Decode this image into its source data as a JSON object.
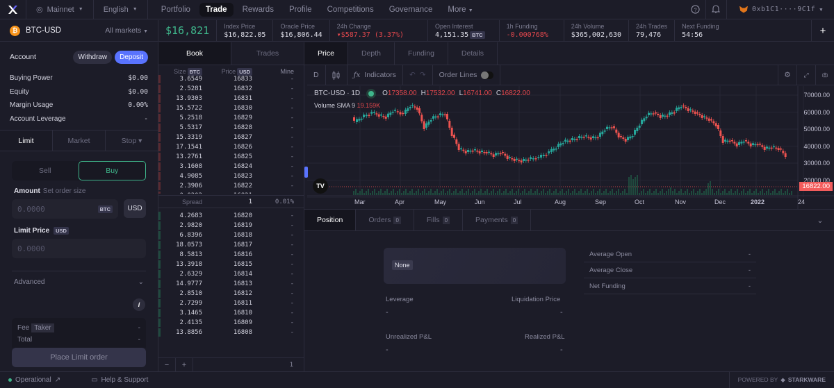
{
  "nav": {
    "network": "Mainnet",
    "language": "English",
    "links": [
      "Portfolio",
      "Trade",
      "Rewards",
      "Profile",
      "Competitions",
      "Governance",
      "More"
    ],
    "active": "Trade",
    "wallet": "0xb1C1····9C1f"
  },
  "market": {
    "symbol": "BTC-USD",
    "all_markets": "All markets",
    "price": "$16,821",
    "stats": [
      {
        "label": "Index Price",
        "value": "$16,822.05"
      },
      {
        "label": "Oracle Price",
        "value": "$16,806.44"
      },
      {
        "label": "24h Change",
        "value": "▾$587.37 (3.37%)",
        "color": "red"
      },
      {
        "label": "Open Interest",
        "value": "4,151.35",
        "tag": "BTC"
      },
      {
        "label": "1h Funding",
        "value": "-0.000768%",
        "color": "red"
      },
      {
        "label": "24h Volume",
        "value": "$365,002,630"
      },
      {
        "label": "24h Trades",
        "value": "79,476"
      },
      {
        "label": "Next Funding",
        "value": "54:56"
      }
    ]
  },
  "account": {
    "title": "Account",
    "withdraw": "Withdraw",
    "deposit": "Deposit",
    "rows": [
      {
        "label": "Buying Power",
        "value": "$0.00"
      },
      {
        "label": "Equity",
        "value": "$0.00"
      },
      {
        "label": "Margin Usage",
        "value": "0.00%"
      },
      {
        "label": "Account Leverage",
        "value": "-"
      }
    ]
  },
  "order": {
    "tabs": [
      "Limit",
      "Market",
      "Stop ▾"
    ],
    "sell": "Sell",
    "buy": "Buy",
    "amount_label": "Amount",
    "amount_sub": "Set order size",
    "amount_placeholder": "0.0000",
    "amount_unit": "BTC",
    "usd_toggle": "USD",
    "limit_label": "Limit Price",
    "limit_unit": "USD",
    "limit_placeholder": "0.0000",
    "advanced": "Advanced",
    "fee_label": "Fee",
    "fee_type": "Taker",
    "fee_value": "-",
    "total_label": "Total",
    "total_value": "-",
    "submit": "Place Limit order"
  },
  "book": {
    "tabs": [
      "Book",
      "Trades"
    ],
    "headers": {
      "size": "Size",
      "size_unit": "BTC",
      "price": "Price",
      "price_unit": "USD",
      "mine": "Mine"
    },
    "asks": [
      [
        "3.6549",
        "16833",
        "-"
      ],
      [
        "2.5281",
        "16832",
        "-"
      ],
      [
        "13.9303",
        "16831",
        "-"
      ],
      [
        "15.5722",
        "16830",
        "-"
      ],
      [
        "5.2518",
        "16829",
        "-"
      ],
      [
        "5.5317",
        "16828",
        "-"
      ],
      [
        "15.3319",
        "16827",
        "-"
      ],
      [
        "17.1541",
        "16826",
        "-"
      ],
      [
        "13.2761",
        "16825",
        "-"
      ],
      [
        "3.1608",
        "16824",
        "-"
      ],
      [
        "4.9085",
        "16823",
        "-"
      ],
      [
        "2.3906",
        "16822",
        "-"
      ],
      [
        "0.0202",
        "16821",
        "-"
      ]
    ],
    "spread": {
      "label": "Spread",
      "value": "1",
      "pct": "0.01%"
    },
    "bids": [
      [
        "4.2683",
        "16820",
        "-"
      ],
      [
        "2.9820",
        "16819",
        "-"
      ],
      [
        "6.8396",
        "16818",
        "-"
      ],
      [
        "18.0573",
        "16817",
        "-"
      ],
      [
        "8.5813",
        "16816",
        "-"
      ],
      [
        "13.3918",
        "16815",
        "-"
      ],
      [
        "2.6329",
        "16814",
        "-"
      ],
      [
        "14.9777",
        "16813",
        "-"
      ],
      [
        "2.8510",
        "16812",
        "-"
      ],
      [
        "2.7299",
        "16811",
        "-"
      ],
      [
        "3.1465",
        "16810",
        "-"
      ],
      [
        "2.4135",
        "16809",
        "-"
      ],
      [
        "13.8856",
        "16808",
        "-"
      ]
    ],
    "grouping": "1"
  },
  "chart": {
    "tabs": [
      "Price",
      "Depth",
      "Funding",
      "Details"
    ],
    "toolbar": {
      "interval": "D",
      "indicators": "Indicators",
      "order_lines": "Order Lines"
    },
    "title": "BTC-USD · 1D",
    "ohlc": {
      "o": "17358.00",
      "h": "17532.00",
      "l": "16741.00",
      "c": "16822.00"
    },
    "volume_label": "Volume SMA 9",
    "volume_value": "19.159K",
    "y_ticks": [
      "70000.00",
      "60000.00",
      "50000.00",
      "40000.00",
      "30000.00",
      "20000.00"
    ],
    "x_ticks": [
      "Mar",
      "Apr",
      "May",
      "Jun",
      "Jul",
      "Aug",
      "Sep",
      "Oct",
      "Nov",
      "Dec",
      "2022",
      "24"
    ],
    "last_price": "16822.00",
    "colors": {
      "up": "#26a69a",
      "down": "#ef5350"
    }
  },
  "positions": {
    "tabs": [
      {
        "label": "Position"
      },
      {
        "label": "Orders",
        "count": "0"
      },
      {
        "label": "Fills",
        "count": "0"
      },
      {
        "label": "Payments",
        "count": "0"
      }
    ],
    "side": "None",
    "leverage_label": "Leverage",
    "leverage_value": "-",
    "liq_label": "Liquidation Price",
    "liq_value": "-",
    "upnl_label": "Unrealized P&L",
    "upnl_value": "-",
    "rpnl_label": "Realized P&L",
    "rpnl_value": "-",
    "details": [
      {
        "label": "Average Open",
        "value": "-"
      },
      {
        "label": "Average Close",
        "value": "-"
      },
      {
        "label": "Net Funding",
        "value": "-"
      }
    ]
  },
  "footer": {
    "status": "Operational",
    "help": "Help & Support",
    "powered": "POWERED BY",
    "brand": "STARKWARE"
  }
}
